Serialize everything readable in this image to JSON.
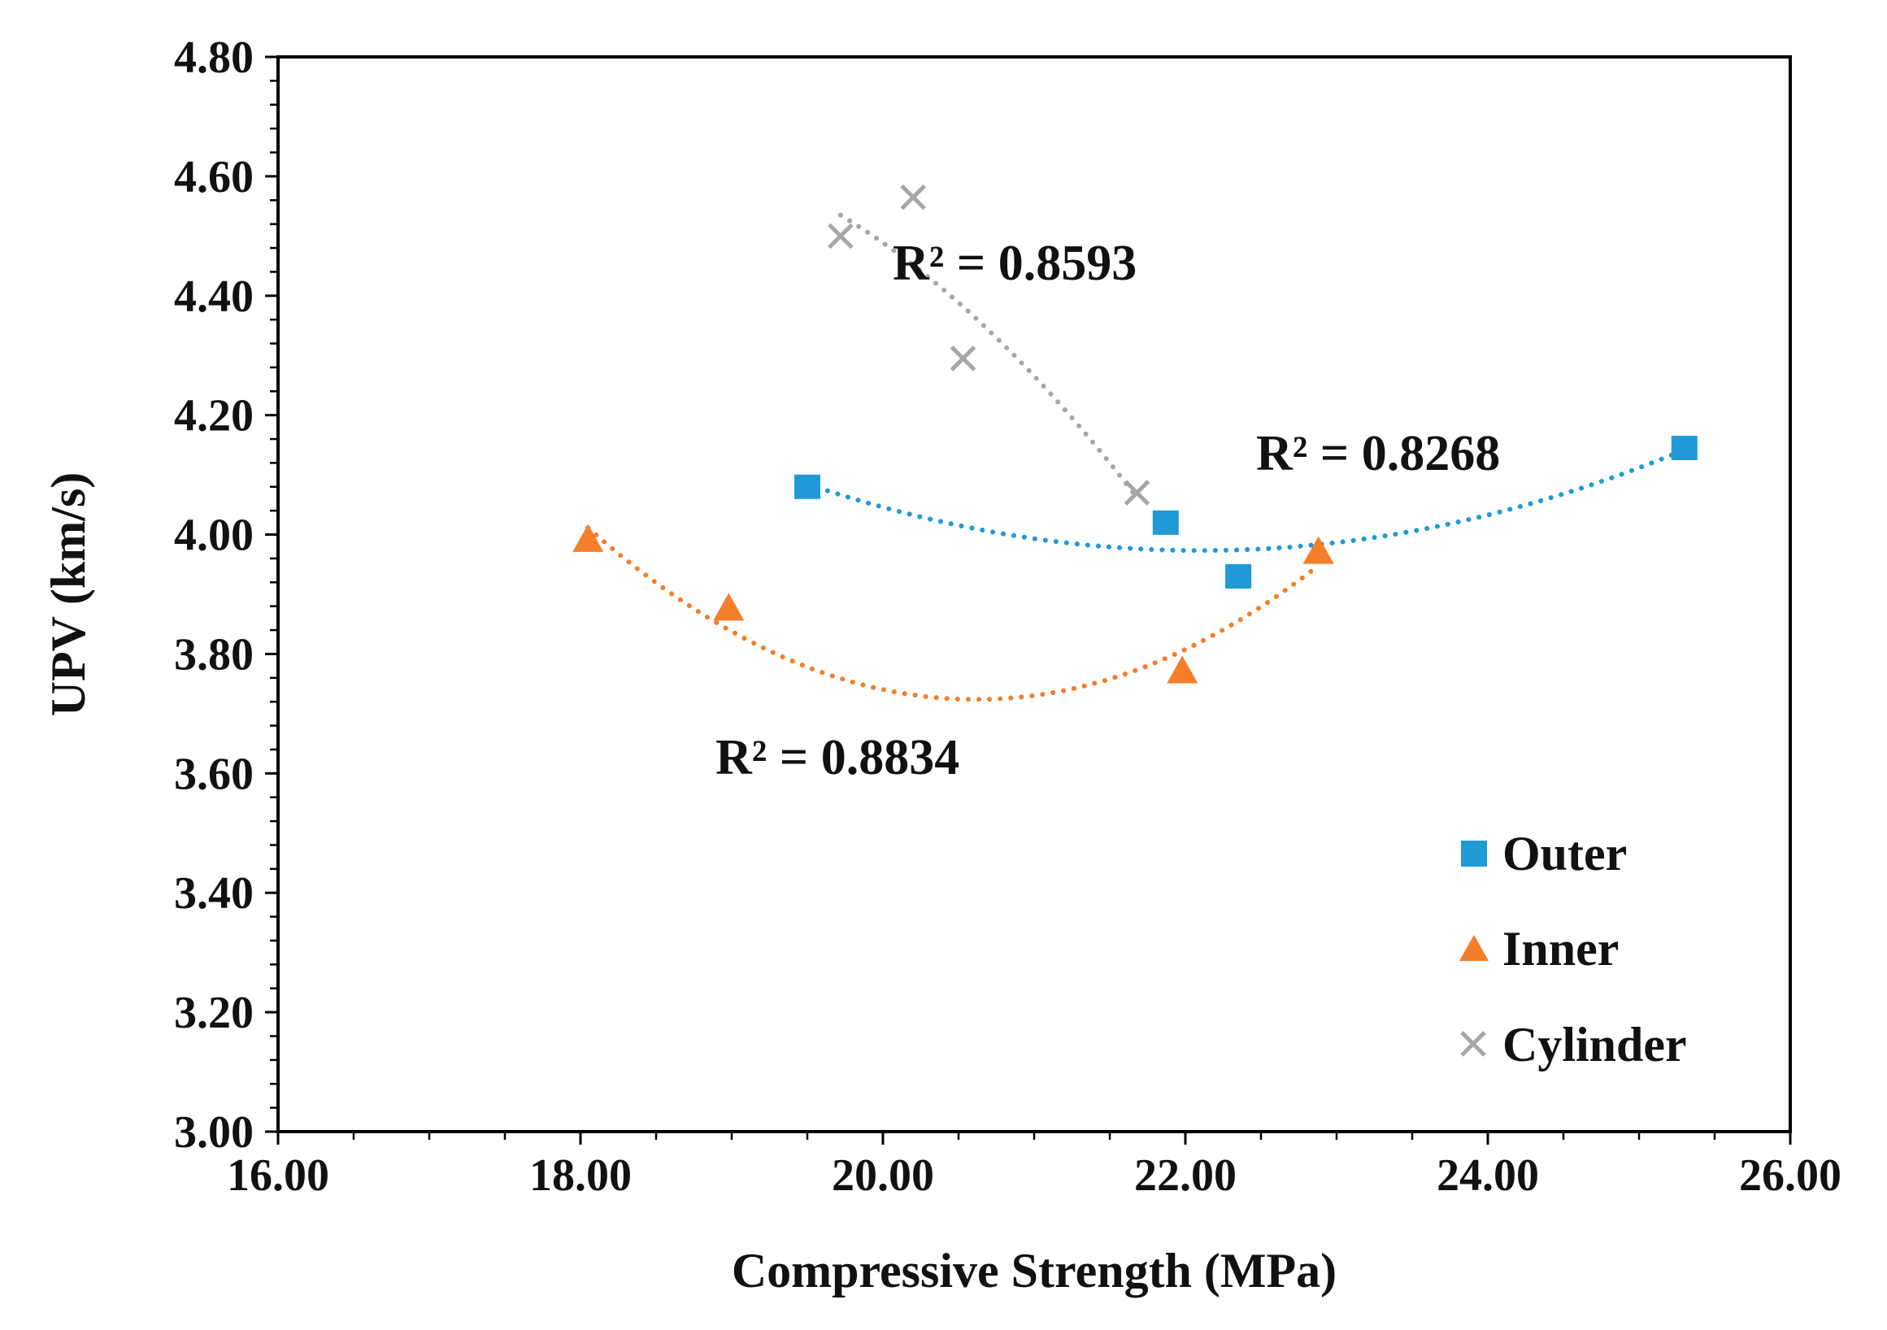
{
  "chart_data": {
    "type": "scatter",
    "title": "",
    "xlabel": "Compressive Strength (MPa)",
    "ylabel": "UPV (km/s)",
    "xlim": [
      16,
      26
    ],
    "ylim": [
      3.0,
      4.8
    ],
    "x_ticks": [
      16,
      18,
      20,
      22,
      24,
      26
    ],
    "x_tick_labels": [
      "16.00",
      "18.00",
      "20.00",
      "22.00",
      "24.00",
      "26.00"
    ],
    "y_ticks": [
      3.0,
      3.2,
      3.4,
      3.6,
      3.8,
      4.0,
      4.2,
      4.4,
      4.6,
      4.8
    ],
    "y_tick_labels": [
      "3.00",
      "3.20",
      "3.40",
      "3.60",
      "3.80",
      "4.00",
      "4.20",
      "4.40",
      "4.60",
      "4.80"
    ],
    "grid": false,
    "legend_position": "bottom-right",
    "series": [
      {
        "name": "Outer",
        "marker": "square",
        "color": "#1f9ad6",
        "x": [
          19.5,
          21.87,
          22.35,
          25.3
        ],
        "y": [
          4.08,
          4.02,
          3.93,
          4.145
        ],
        "trendline": "polynomial-2",
        "r2_label": "R² = 0.8268"
      },
      {
        "name": "Inner",
        "marker": "triangle",
        "color": "#f47e2a",
        "x": [
          18.05,
          18.98,
          21.98,
          22.88
        ],
        "y": [
          3.99,
          3.875,
          3.77,
          3.97
        ],
        "trendline": "polynomial-2",
        "r2_label": "R² = 0.8834"
      },
      {
        "name": "Cylinder",
        "marker": "x",
        "color": "#a6a6a6",
        "x": [
          19.72,
          20.2,
          20.53,
          21.68
        ],
        "y": [
          4.5,
          4.565,
          4.295,
          4.07
        ],
        "trendline": "polynomial-2",
        "r2_label": "R² = 0.8593"
      }
    ]
  }
}
